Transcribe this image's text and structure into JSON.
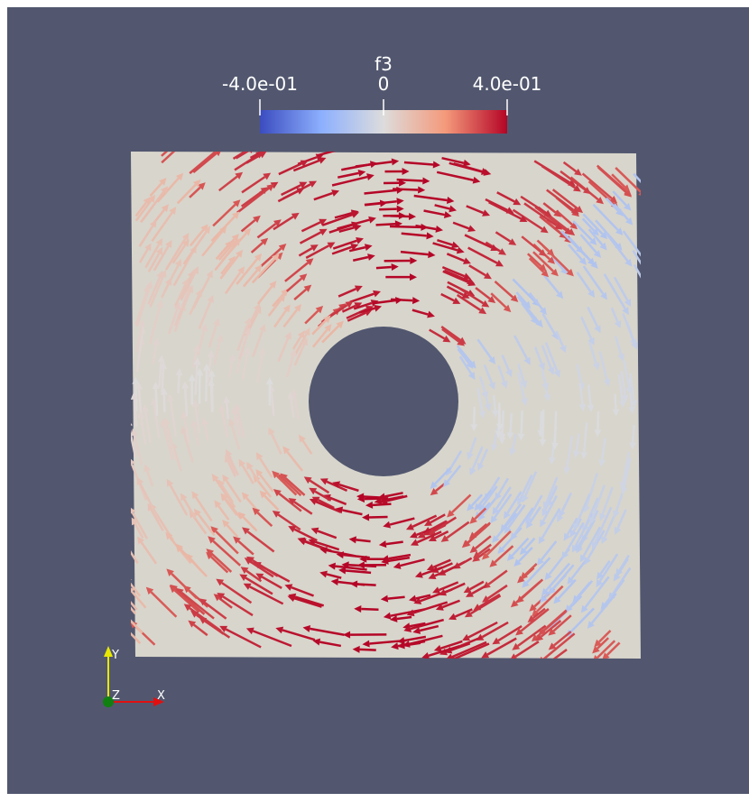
{
  "colorbar": {
    "title": "f3",
    "range": [
      -0.4,
      0.4
    ],
    "ticks": [
      {
        "value": -0.4,
        "label": "-4.0e-01"
      },
      {
        "value": 0,
        "label": "0"
      },
      {
        "value": 0.4,
        "label": "4.0e-01"
      }
    ]
  },
  "axes": {
    "x": "X",
    "y": "Y",
    "z": "Z"
  }
}
